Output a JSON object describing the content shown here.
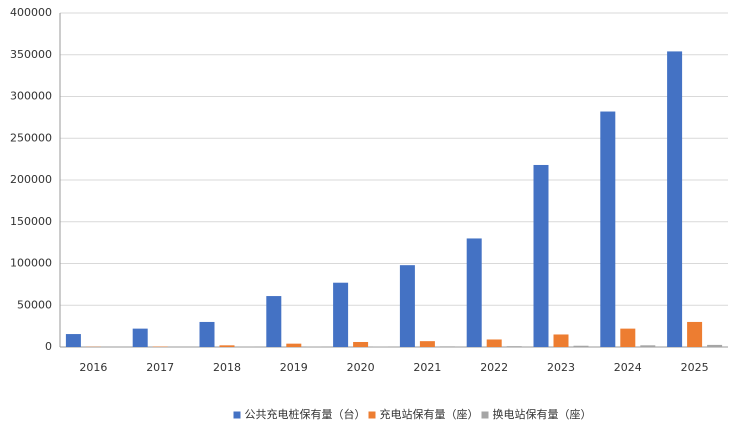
{
  "chart_data": {
    "type": "bar",
    "categories": [
      "2016",
      "2017",
      "2018",
      "2019",
      "2020",
      "2021",
      "2022",
      "2023",
      "2024",
      "2025"
    ],
    "series": [
      {
        "name": "公共充电桩保有量（台）",
        "color": "#4472c4",
        "values": [
          15500,
          22000,
          30000,
          61000,
          77000,
          98000,
          130000,
          218000,
          282000,
          354000
        ]
      },
      {
        "name": "充电站保有量（座）",
        "color": "#ed7d31",
        "values": [
          300,
          500,
          2000,
          4000,
          6000,
          7000,
          9000,
          15000,
          22000,
          30000
        ]
      },
      {
        "name": "换电站保有量（座）",
        "color": "#a5a5a5",
        "values": [
          50,
          100,
          150,
          300,
          500,
          800,
          1000,
          1500,
          2000,
          2500
        ]
      }
    ],
    "ylim": [
      0,
      400000
    ],
    "yticks": [
      0,
      50000,
      100000,
      150000,
      200000,
      250000,
      300000,
      350000,
      400000
    ],
    "grid": true,
    "legend": "bottom"
  }
}
